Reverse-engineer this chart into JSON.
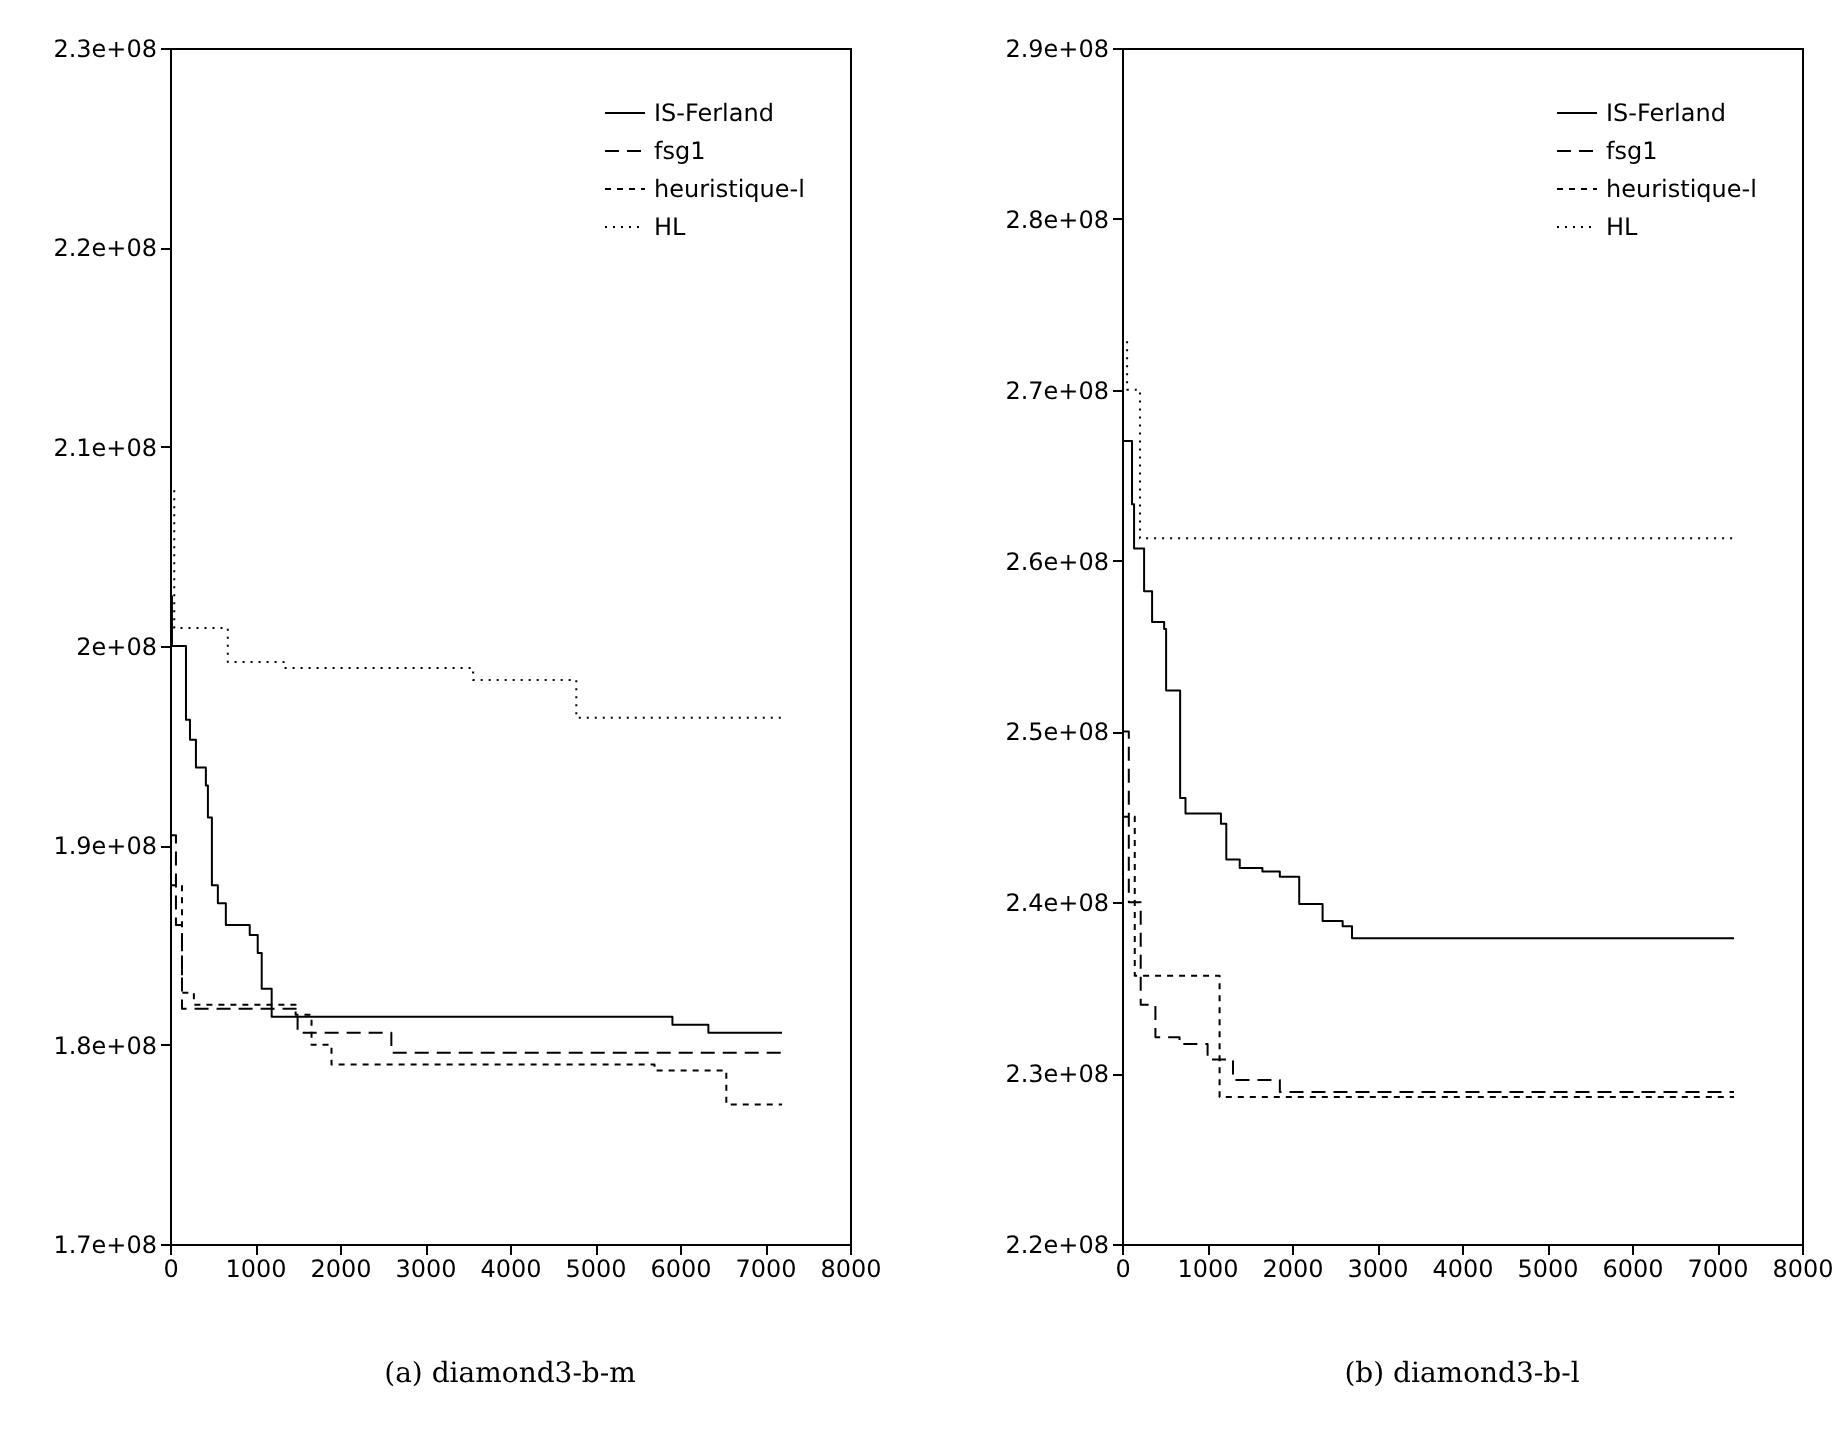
{
  "chart_data": [
    {
      "type": "step",
      "title": "(a) diamond3-b-m",
      "xlim": [
        0,
        8000
      ],
      "xticks": [
        0,
        1000,
        2000,
        3000,
        4000,
        5000,
        6000,
        7000,
        8000
      ],
      "ylim": [
        170000000,
        230000000
      ],
      "yticks": [
        {
          "value": 170000000,
          "label": "1.7e+08"
        },
        {
          "value": 180000000,
          "label": "1.8e+08"
        },
        {
          "value": 190000000,
          "label": "1.9e+08"
        },
        {
          "value": 200000000,
          "label": "2e+08"
        },
        {
          "value": 210000000,
          "label": "2.1e+08"
        },
        {
          "value": 220000000,
          "label": "2.2e+08"
        },
        {
          "value": 230000000,
          "label": "2.3e+08"
        }
      ],
      "legend": "top right",
      "grid": false,
      "series": [
        {
          "name": "IS-Ferland",
          "color": "#000000",
          "line_style": "solid",
          "x": [
            0,
            23,
            188,
            235,
            305,
            422,
            446,
            493,
            563,
            657,
            938,
            1032,
            1079,
            1196,
            5911,
            6334,
            7200
          ],
          "values": [
            202500000,
            200000000,
            196300000,
            195300000,
            193900000,
            193000000,
            191400000,
            188000000,
            187100000,
            186000000,
            185500000,
            184600000,
            182800000,
            181400000,
            181000000,
            180600000,
            180600000
          ]
        },
        {
          "name": "fsg1",
          "color": "#000000",
          "line_style": "dashed",
          "x": [
            0,
            70,
            141,
            1501,
            2604,
            7200
          ],
          "values": [
            190500000,
            186000000,
            181800000,
            180600000,
            179600000,
            179600000
          ]
        },
        {
          "name": "heuristique-l",
          "color": "#000000",
          "line_style": "dashed",
          "x": [
            0,
            141,
            281,
            1478,
            1665,
            1900,
            5700,
            6545,
            7200
          ],
          "values": [
            188000000,
            182600000,
            182000000,
            181500000,
            180000000,
            179000000,
            178700000,
            177000000,
            177000000
          ]
        },
        {
          "name": "HL",
          "color": "#000000",
          "line_style": "dotted",
          "x": [
            0,
            50,
            680,
            1337,
            3566,
            4780,
            7200
          ],
          "values": [
            208000000,
            200900000,
            199200000,
            198900000,
            198300000,
            196400000,
            196400000
          ]
        }
      ]
    },
    {
      "type": "step",
      "title": "(b) diamond3-b-l",
      "xlim": [
        0,
        8000
      ],
      "xticks": [
        0,
        1000,
        2000,
        3000,
        4000,
        5000,
        6000,
        7000,
        8000
      ],
      "ylim": [
        220000000,
        290000000
      ],
      "yticks": [
        {
          "value": 220000000,
          "label": "2.2e+08"
        },
        {
          "value": 230000000,
          "label": "2.3e+08"
        },
        {
          "value": 240000000,
          "label": "2.4e+08"
        },
        {
          "value": 250000000,
          "label": "2.5e+08"
        },
        {
          "value": 260000000,
          "label": "2.6e+08"
        },
        {
          "value": 270000000,
          "label": "2.7e+08"
        },
        {
          "value": 280000000,
          "label": "2.8e+08"
        },
        {
          "value": 290000000,
          "label": "2.9e+08"
        }
      ],
      "legend": "top right",
      "grid": false,
      "series": [
        {
          "name": "IS-Ferland",
          "color": "#000000",
          "line_style": "solid",
          "x": [
            0,
            118,
            142,
            260,
            354,
            496,
            519,
            684,
            747,
            1164,
            1227,
            1385,
            1652,
            1857,
            2085,
            2360,
            2596,
            2706,
            7200
          ],
          "values": [
            267000000,
            263300000,
            260700000,
            258200000,
            256400000,
            256000000,
            252400000,
            246100000,
            245200000,
            244600000,
            242500000,
            242000000,
            241800000,
            241500000,
            239900000,
            238900000,
            238600000,
            237900000,
            237900000
          ]
        },
        {
          "name": "fsg1",
          "color": "#000000",
          "line_style": "dashed",
          "x": [
            0,
            80,
            220,
            393,
            677,
            1007,
            1306,
            1857,
            7200
          ],
          "values": [
            250000000,
            240000000,
            234000000,
            232100000,
            231700000,
            230800000,
            229600000,
            228900000,
            228900000
          ]
        },
        {
          "name": "heuristique-l",
          "color": "#000000",
          "line_style": "dashed",
          "x": [
            0,
            150,
            1148,
            7200
          ],
          "values": [
            245000000,
            235700000,
            228600000,
            228600000
          ]
        },
        {
          "name": "HL",
          "color": "#000000",
          "line_style": "dotted",
          "x": [
            0,
            60,
            212,
            7200
          ],
          "values": [
            273000000,
            270000000,
            261300000,
            261300000
          ]
        }
      ]
    }
  ]
}
